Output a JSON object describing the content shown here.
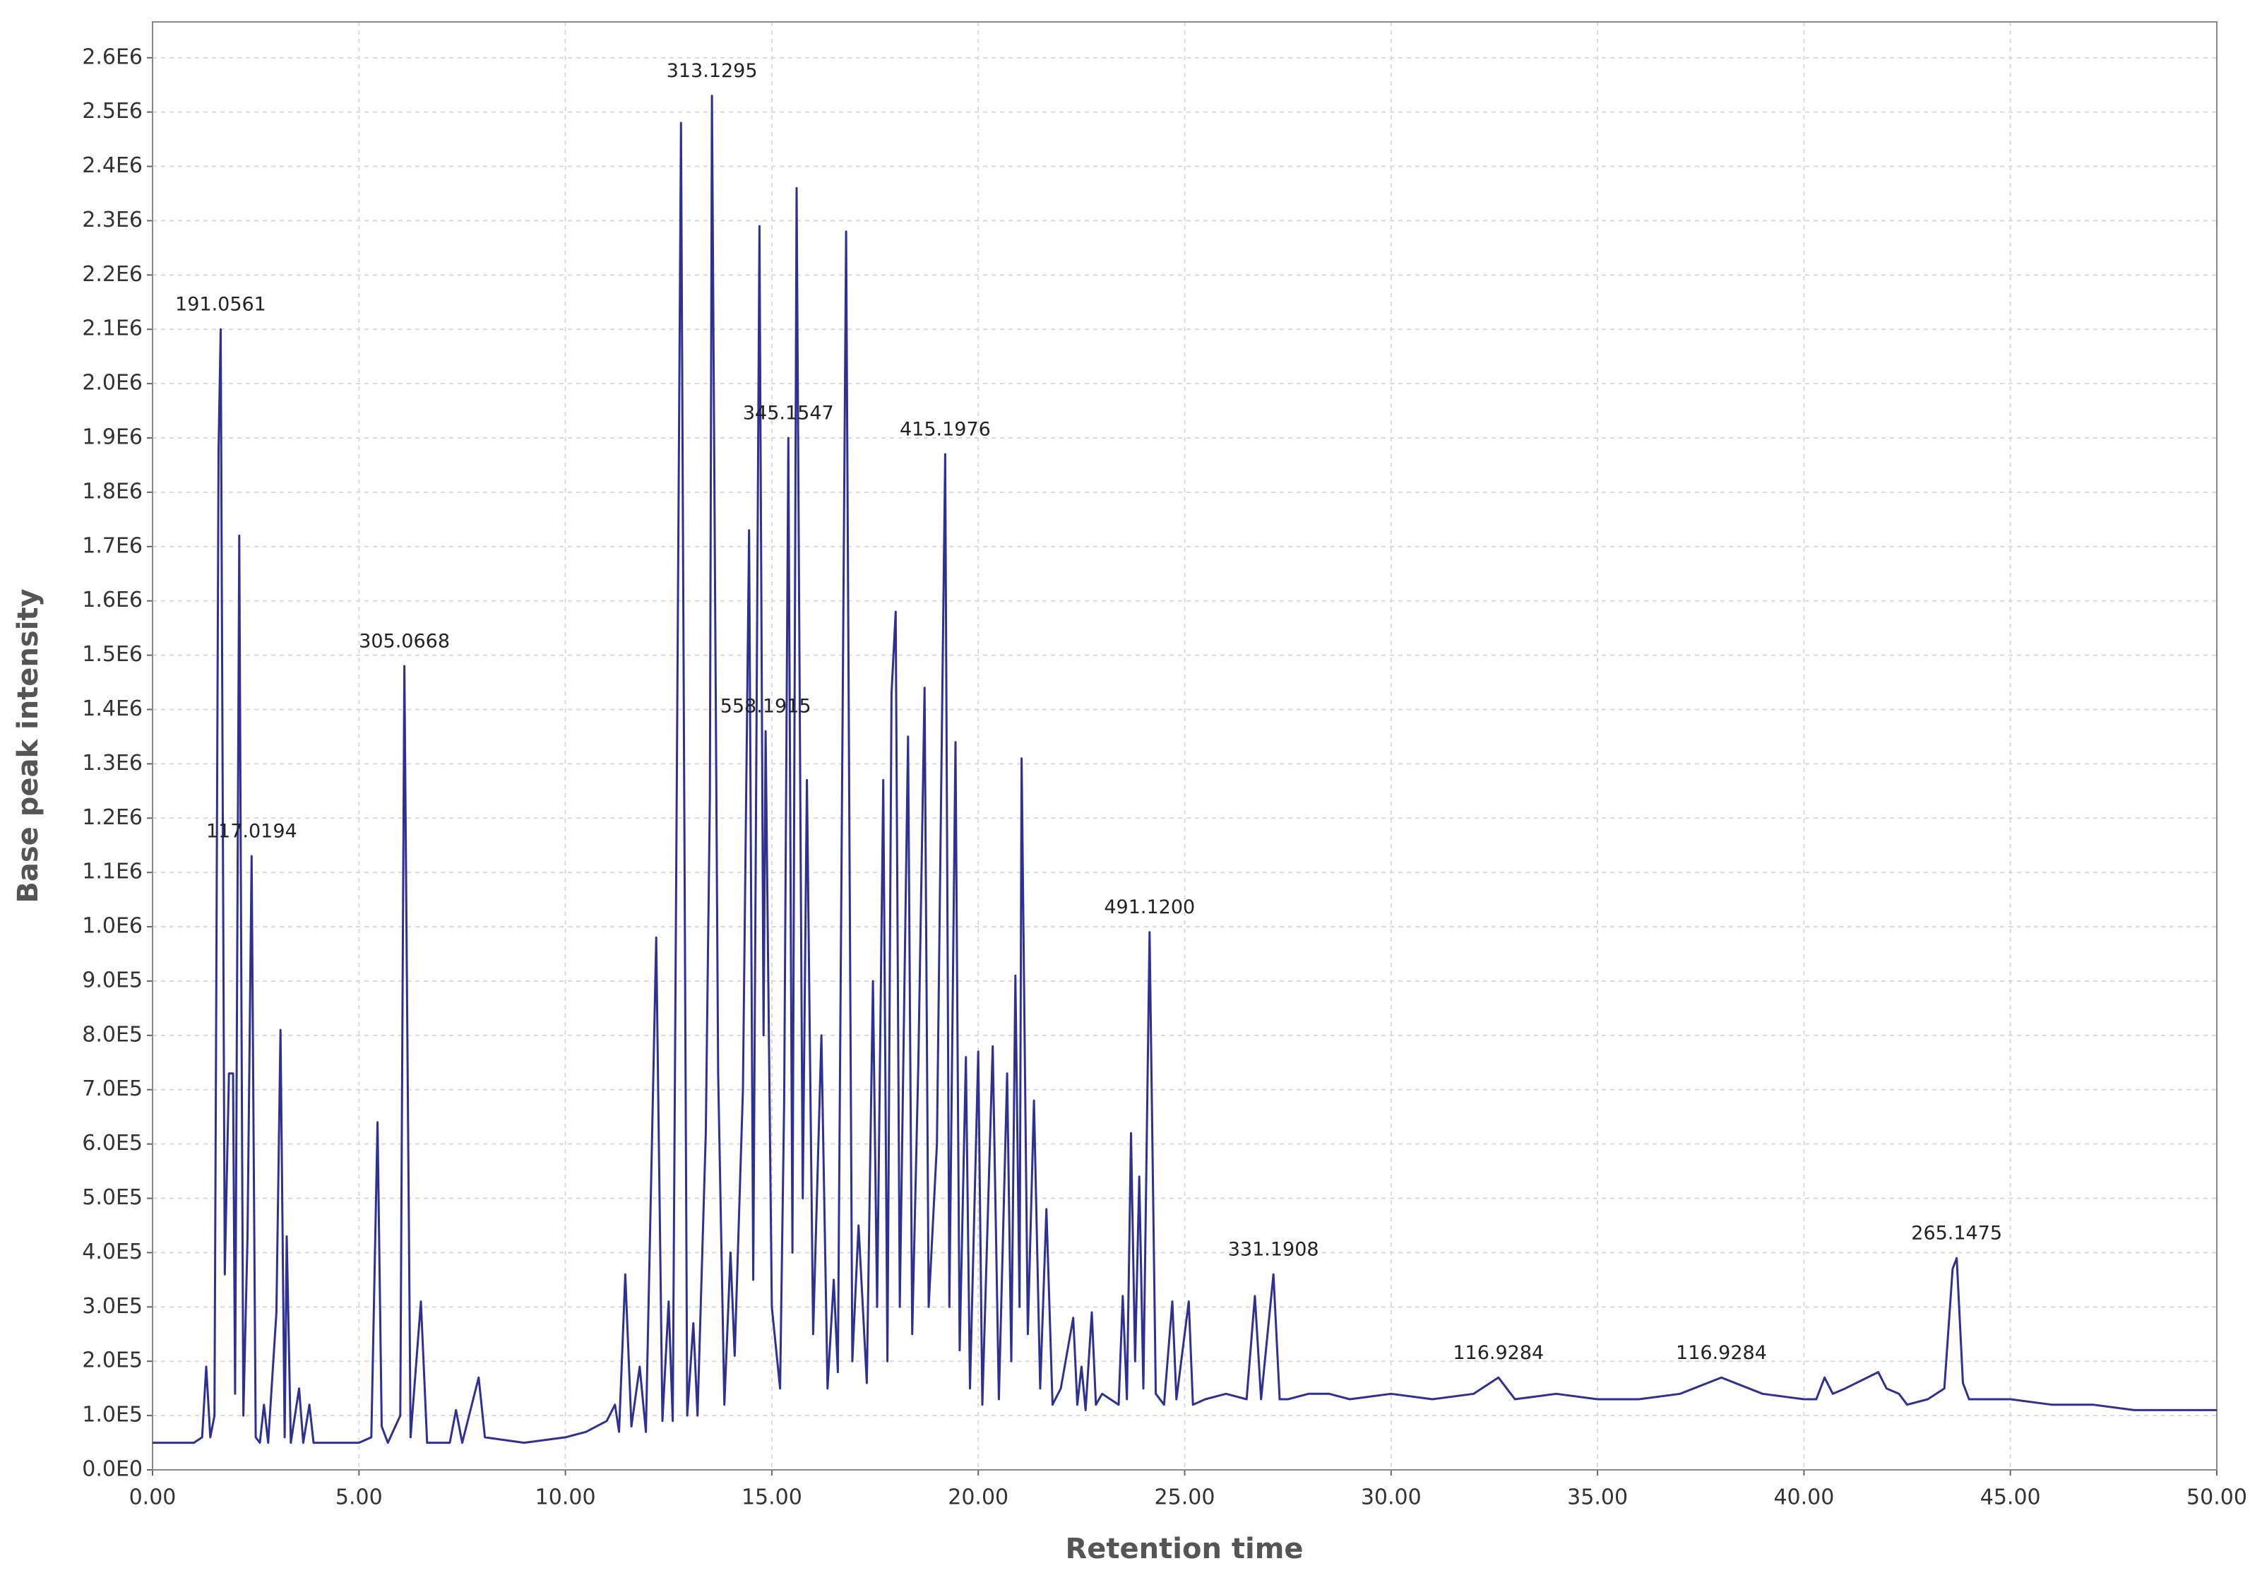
{
  "chart_data": {
    "type": "line",
    "xlabel": "Retention time",
    "ylabel": "Base peak intensity",
    "xlim": [
      0,
      50
    ],
    "ylim": [
      0,
      2666000
    ],
    "xticks": [
      {
        "value": 0,
        "label": "0.00"
      },
      {
        "value": 5,
        "label": "5.00"
      },
      {
        "value": 10,
        "label": "10.00"
      },
      {
        "value": 15,
        "label": "15.00"
      },
      {
        "value": 20,
        "label": "20.00"
      },
      {
        "value": 25,
        "label": "25.00"
      },
      {
        "value": 30,
        "label": "30.00"
      },
      {
        "value": 35,
        "label": "35.00"
      },
      {
        "value": 40,
        "label": "40.00"
      },
      {
        "value": 45,
        "label": "45.00"
      },
      {
        "value": 50,
        "label": "50.00"
      }
    ],
    "yticks": [
      {
        "value": 0,
        "label": "0.0E0"
      },
      {
        "value": 100000,
        "label": "1.0E5"
      },
      {
        "value": 200000,
        "label": "2.0E5"
      },
      {
        "value": 300000,
        "label": "3.0E5"
      },
      {
        "value": 400000,
        "label": "4.0E5"
      },
      {
        "value": 500000,
        "label": "5.0E5"
      },
      {
        "value": 600000,
        "label": "6.0E5"
      },
      {
        "value": 700000,
        "label": "7.0E5"
      },
      {
        "value": 800000,
        "label": "8.0E5"
      },
      {
        "value": 900000,
        "label": "9.0E5"
      },
      {
        "value": 1000000,
        "label": "1.0E6"
      },
      {
        "value": 1100000,
        "label": "1.1E6"
      },
      {
        "value": 1200000,
        "label": "1.2E6"
      },
      {
        "value": 1300000,
        "label": "1.3E6"
      },
      {
        "value": 1400000,
        "label": "1.4E6"
      },
      {
        "value": 1500000,
        "label": "1.5E6"
      },
      {
        "value": 1600000,
        "label": "1.6E6"
      },
      {
        "value": 1700000,
        "label": "1.7E6"
      },
      {
        "value": 1800000,
        "label": "1.8E6"
      },
      {
        "value": 1900000,
        "label": "1.9E6"
      },
      {
        "value": 2000000,
        "label": "2.0E6"
      },
      {
        "value": 2100000,
        "label": "2.1E6"
      },
      {
        "value": 2200000,
        "label": "2.2E6"
      },
      {
        "value": 2300000,
        "label": "2.3E6"
      },
      {
        "value": 2400000,
        "label": "2.4E6"
      },
      {
        "value": 2500000,
        "label": "2.5E6"
      },
      {
        "value": 2600000,
        "label": "2.6E6"
      }
    ],
    "grid": true,
    "series": [
      {
        "color": "#2e3192",
        "x": [
          0,
          1.0,
          1.2,
          1.3,
          1.4,
          1.5,
          1.6,
          1.65,
          1.75,
          1.85,
          1.95,
          2.0,
          2.1,
          2.2,
          2.3,
          2.4,
          2.5,
          2.6,
          2.7,
          2.8,
          3.0,
          3.1,
          3.2,
          3.25,
          3.35,
          3.55,
          3.65,
          3.8,
          3.9,
          4.5,
          5.0,
          5.3,
          5.45,
          5.55,
          5.7,
          6.0,
          6.1,
          6.25,
          6.5,
          6.65,
          7.2,
          7.35,
          7.5,
          7.9,
          8.05,
          9.0,
          10.0,
          10.5,
          11.0,
          11.2,
          11.3,
          11.45,
          11.6,
          11.8,
          11.95,
          12.2,
          12.35,
          12.5,
          12.6,
          12.8,
          12.95,
          13.1,
          13.2,
          13.4,
          13.5,
          13.55,
          13.7,
          13.85,
          14.0,
          14.1,
          14.3,
          14.45,
          14.55,
          14.7,
          14.8,
          14.85,
          15.0,
          15.2,
          15.3,
          15.4,
          15.5,
          15.6,
          15.75,
          15.85,
          16.0,
          16.2,
          16.35,
          16.5,
          16.6,
          16.8,
          16.95,
          17.1,
          17.3,
          17.45,
          17.55,
          17.7,
          17.8,
          17.9,
          18.0,
          18.1,
          18.3,
          18.4,
          18.55,
          18.7,
          18.8,
          19.0,
          19.2,
          19.3,
          19.45,
          19.55,
          19.7,
          19.8,
          20.0,
          20.1,
          20.35,
          20.5,
          20.7,
          20.8,
          20.9,
          21.0,
          21.05,
          21.2,
          21.35,
          21.5,
          21.65,
          21.8,
          22.0,
          22.3,
          22.4,
          22.5,
          22.6,
          22.75,
          22.85,
          23.0,
          23.4,
          23.5,
          23.6,
          23.7,
          23.8,
          23.9,
          24.0,
          24.15,
          24.3,
          24.5,
          24.7,
          24.8,
          25.1,
          25.2,
          25.5,
          26.0,
          26.5,
          26.7,
          26.85,
          27.15,
          27.3,
          27.5,
          28.0,
          28.5,
          29.0,
          30.0,
          31.0,
          32.0,
          32.6,
          33.0,
          34.0,
          35.0,
          36.0,
          37.0,
          38.0,
          39.0,
          40.0,
          40.3,
          40.5,
          40.7,
          41.0,
          41.8,
          42.0,
          42.3,
          42.5,
          43.0,
          43.4,
          43.6,
          43.7,
          43.85,
          44.0,
          45.0,
          46.0,
          47.0,
          48.0,
          49.0,
          50.0
        ],
        "values": [
          50000,
          50000,
          60000,
          190000,
          60000,
          100000,
          1880000,
          2100000,
          360000,
          730000,
          730000,
          140000,
          1720000,
          100000,
          430000,
          1130000,
          60000,
          50000,
          120000,
          50000,
          290000,
          810000,
          60000,
          430000,
          50000,
          150000,
          50000,
          120000,
          50000,
          50000,
          50000,
          60000,
          640000,
          80000,
          50000,
          100000,
          1480000,
          60000,
          310000,
          50000,
          50000,
          110000,
          50000,
          170000,
          60000,
          50000,
          60000,
          70000,
          90000,
          120000,
          70000,
          360000,
          80000,
          190000,
          70000,
          980000,
          90000,
          310000,
          90000,
          2480000,
          100000,
          270000,
          100000,
          620000,
          1240000,
          2530000,
          730000,
          120000,
          400000,
          210000,
          700000,
          1730000,
          350000,
          2290000,
          800000,
          1360000,
          300000,
          150000,
          680000,
          1900000,
          400000,
          2360000,
          500000,
          1270000,
          250000,
          800000,
          150000,
          350000,
          180000,
          2280000,
          200000,
          450000,
          160000,
          900000,
          300000,
          1270000,
          200000,
          1430000,
          1580000,
          300000,
          1350000,
          250000,
          750000,
          1440000,
          300000,
          600000,
          1870000,
          300000,
          1340000,
          220000,
          760000,
          150000,
          770000,
          120000,
          780000,
          130000,
          730000,
          200000,
          910000,
          300000,
          1310000,
          250000,
          680000,
          150000,
          480000,
          120000,
          150000,
          280000,
          120000,
          190000,
          110000,
          290000,
          120000,
          140000,
          120000,
          320000,
          130000,
          620000,
          200000,
          540000,
          150000,
          990000,
          140000,
          120000,
          310000,
          130000,
          310000,
          120000,
          130000,
          140000,
          130000,
          320000,
          130000,
          360000,
          130000,
          130000,
          140000,
          140000,
          130000,
          140000,
          130000,
          140000,
          170000,
          130000,
          140000,
          130000,
          130000,
          140000,
          170000,
          140000,
          130000,
          130000,
          170000,
          140000,
          150000,
          180000,
          150000,
          140000,
          120000,
          130000,
          150000,
          370000,
          390000,
          160000,
          130000,
          130000,
          120000,
          120000,
          110000,
          110000,
          110000
        ]
      }
    ],
    "annotations": [
      {
        "text": "191.0561",
        "x": 1.65,
        "y": 2100000
      },
      {
        "text": "117.0194",
        "x": 2.4,
        "y": 1130000
      },
      {
        "text": "305.0668",
        "x": 6.1,
        "y": 1480000
      },
      {
        "text": "313.1295",
        "x": 13.55,
        "y": 2530000
      },
      {
        "text": "345.1547",
        "x": 15.4,
        "y": 1900000
      },
      {
        "text": "558.1915",
        "x": 14.85,
        "y": 1360000
      },
      {
        "text": "415.1976",
        "x": 19.2,
        "y": 1870000
      },
      {
        "text": "491.1200",
        "x": 24.15,
        "y": 990000
      },
      {
        "text": "331.1908",
        "x": 27.15,
        "y": 360000
      },
      {
        "text": "116.9284",
        "x": 32.6,
        "y": 170000
      },
      {
        "text": "116.9284",
        "x": 38.0,
        "y": 170000
      },
      {
        "text": "265.1475",
        "x": 43.7,
        "y": 390000
      }
    ]
  }
}
